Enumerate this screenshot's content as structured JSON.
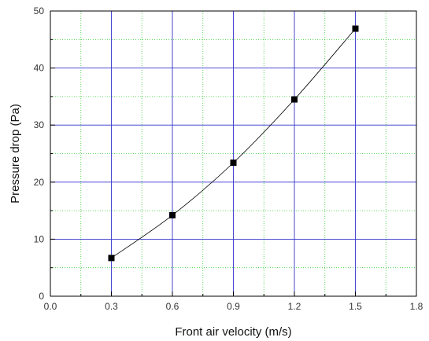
{
  "chart_data": {
    "type": "scatter",
    "title": "",
    "xlabel": "Front air velocity (m/s)",
    "ylabel": "Pressure drop (Pa)",
    "xlim": [
      0.0,
      1.8
    ],
    "ylim": [
      0,
      50
    ],
    "x_ticks": [
      "0.0",
      "0.3",
      "0.6",
      "0.9",
      "1.2",
      "1.5",
      "1.8"
    ],
    "y_ticks": [
      "0",
      "10",
      "20",
      "30",
      "40",
      "50"
    ],
    "x_tick_values": [
      0.0,
      0.3,
      0.6,
      0.9,
      1.2,
      1.5,
      1.8
    ],
    "y_tick_values": [
      0,
      10,
      20,
      30,
      40,
      50
    ],
    "grid": {
      "major": true,
      "minor": true
    },
    "series": [
      {
        "x": [
          0.3,
          0.6,
          0.9,
          1.2,
          1.5
        ],
        "y": [
          6.7,
          14.2,
          23.4,
          34.5,
          46.9
        ],
        "marker": "square",
        "line": true
      }
    ],
    "colors": {
      "major_grid": "#3333cc",
      "minor_grid": "#33cc33",
      "marker": "#000000",
      "line": "#000000",
      "axis": "#000000"
    }
  }
}
